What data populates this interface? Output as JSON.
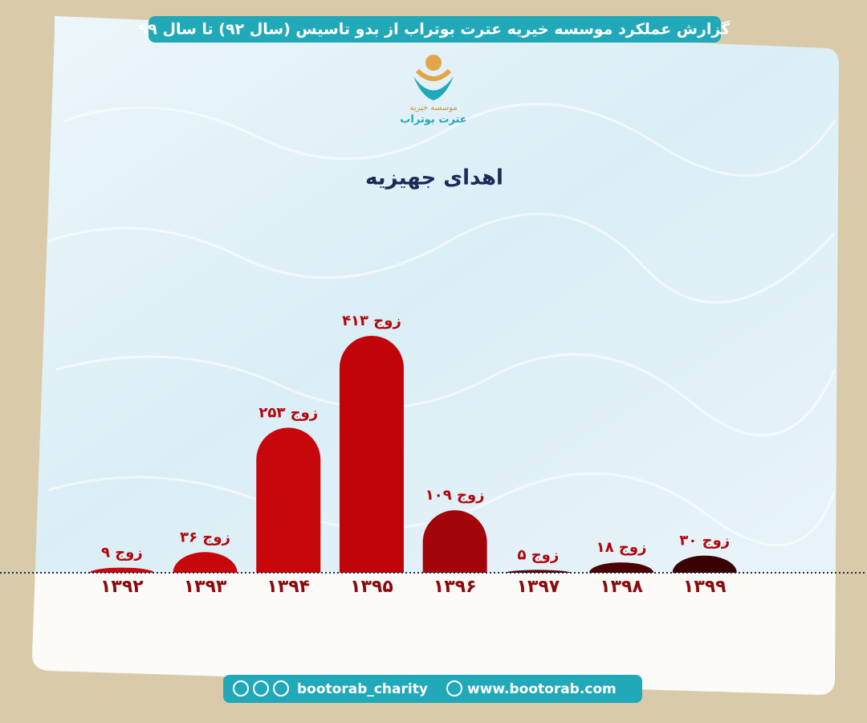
{
  "header": {
    "title": "گزارش عملکرد موسسه خیریه عترت بوتراب از بدو تاسیس (سال ۹۲) تا سال ۹۹"
  },
  "logo": {
    "line1": "موسسه خیریه",
    "line2": "عترت بوتراب"
  },
  "chart_data": {
    "type": "bar",
    "title": "اهدای جهیزیه",
    "categories": [
      "۱۳۹۲",
      "۱۳۹۳",
      "۱۳۹۴",
      "۱۳۹۵",
      "۱۳۹۶",
      "۱۳۹۷",
      "۱۳۹۸",
      "۱۳۹۹"
    ],
    "values": [
      9,
      36,
      253,
      413,
      109,
      5,
      18,
      30
    ],
    "value_labels": [
      "۹ زوج",
      "۳۶ زوج",
      "۲۵۳ زوج",
      "۴۱۳ زوج",
      "۱۰۹ زوج",
      "۵ زوج",
      "۱۸ زوج",
      "۳۰ زوج"
    ],
    "colors": [
      "#c8070c",
      "#c8070c",
      "#c8070c",
      "#c00309",
      "#a3050b",
      "#5a0206",
      "#4a0205",
      "#3a0104"
    ]
  },
  "footer": {
    "social": "bootorab_charity",
    "website": "www.bootorab.com"
  }
}
